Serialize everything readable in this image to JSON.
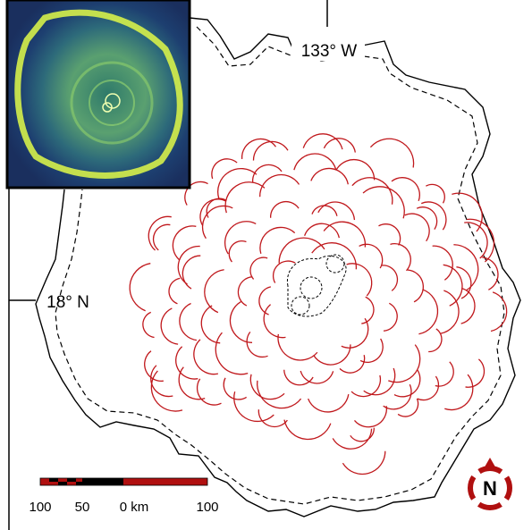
{
  "labels": {
    "longitude": "133° W",
    "latitude": "18° N"
  },
  "scale_bar": {
    "ticks": [
      "100",
      "50",
      "0 km",
      "100"
    ]
  },
  "compass": {
    "label": "N"
  }
}
